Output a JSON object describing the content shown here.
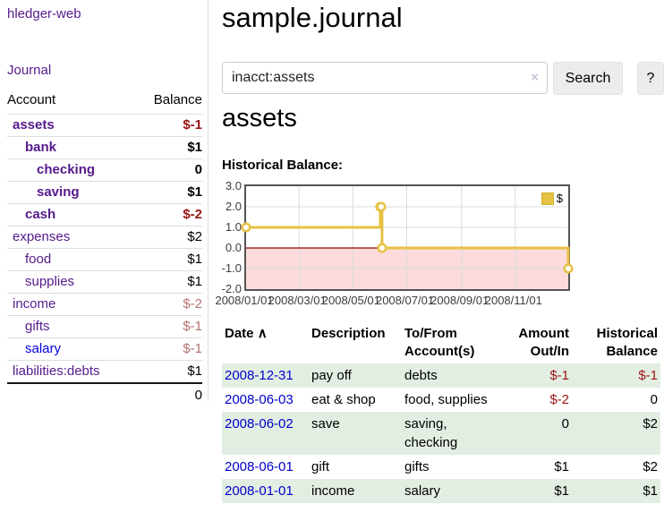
{
  "app": {
    "brand": "hledger-web",
    "nav_journal": "Journal"
  },
  "colors": {
    "accent_purple": "#551a8b",
    "link_blue": "#0000cc",
    "negative_strong": "#9b1414",
    "negative_soft": "#b5736f",
    "row_green": "#e3eee3",
    "chart_line": "#e7c143",
    "chart_negative_region": "#fbdbdb",
    "chart_zero_line": "#8f0000"
  },
  "sidebar": {
    "headers": [
      "Account",
      "Balance"
    ],
    "accounts": [
      {
        "name": "assets",
        "balance": "$-1",
        "indent": 1,
        "emphasis": true
      },
      {
        "name": "bank",
        "balance": "$1",
        "indent": 2,
        "emphasis": true
      },
      {
        "name": "checking",
        "balance": "0",
        "indent": 3,
        "emphasis": true
      },
      {
        "name": "saving",
        "balance": "$1",
        "indent": 3,
        "emphasis": true
      },
      {
        "name": "cash",
        "balance": "$-2",
        "indent": 2,
        "emphasis": true
      },
      {
        "name": "expenses",
        "balance": "$2",
        "indent": 1
      },
      {
        "name": "food",
        "balance": "$1",
        "indent": 2
      },
      {
        "name": "supplies",
        "balance": "$1",
        "indent": 2
      },
      {
        "name": "income",
        "balance": "$-2",
        "indent": 1
      },
      {
        "name": "gifts",
        "balance": "$-1",
        "indent": 2
      },
      {
        "name": "salary",
        "balance": "$-1",
        "indent": 2,
        "unvisited": true
      },
      {
        "name": "liabilities:debts",
        "balance": "$1",
        "indent": 1
      }
    ],
    "total": "0"
  },
  "header": {
    "title": "sample.journal"
  },
  "search": {
    "value": "inacct:assets",
    "clear_icon": "×",
    "button": "Search",
    "help_button": "?"
  },
  "account_page": {
    "heading": "assets",
    "chart_label": "Historical Balance:"
  },
  "chart_data": {
    "type": "line",
    "step": true,
    "title": "Historical Balance:",
    "series": [
      {
        "name": "$",
        "color": "#e7c143",
        "points": [
          {
            "date": "2008-01-01",
            "day": 0,
            "value": 1.0
          },
          {
            "date": "2008-06-01",
            "day": 152,
            "value": 2.0
          },
          {
            "date": "2008-06-02",
            "day": 153,
            "value": 2.0
          },
          {
            "date": "2008-06-03",
            "day": 154,
            "value": 0.0
          },
          {
            "date": "2008-12-31",
            "day": 365,
            "value": -1.0
          }
        ]
      }
    ],
    "x_ticks": [
      {
        "day": 0,
        "label": "2008/01/01"
      },
      {
        "day": 60,
        "label": "2008/03/01"
      },
      {
        "day": 121,
        "label": "2008/05/01"
      },
      {
        "day": 182,
        "label": "2008/07/01"
      },
      {
        "day": 244,
        "label": "2008/09/01"
      },
      {
        "day": 305,
        "label": "2008/11/01"
      }
    ],
    "y_ticks": [
      {
        "value": 3.0,
        "label": "3.0"
      },
      {
        "value": 2.0,
        "label": "2.0"
      },
      {
        "value": 1.0,
        "label": "1.0"
      },
      {
        "value": 0.0,
        "label": "0.0"
      },
      {
        "value": -1.0,
        "label": "-1.0"
      },
      {
        "value": -2.0,
        "label": "-2.0"
      }
    ],
    "x_range_days": [
      0,
      365
    ],
    "y_range": [
      -2,
      3
    ],
    "grid": true,
    "legend": {
      "position": "top-right",
      "label": "$",
      "swatch_color": "#e7c143"
    }
  },
  "register": {
    "sort_icon": "∧",
    "columns": [
      {
        "line1": "Date",
        "line2": ""
      },
      {
        "line1": "Description",
        "line2": ""
      },
      {
        "line1": "To/From",
        "line2": "Account(s)"
      },
      {
        "line1": "Amount",
        "line2": "Out/In"
      },
      {
        "line1": "Historical",
        "line2": "Balance"
      }
    ],
    "rows": [
      {
        "date": "2008-12-31",
        "description": "pay off",
        "accounts": "debts",
        "amount": "$-1",
        "balance": "$-1"
      },
      {
        "date": "2008-06-03",
        "description": "eat & shop",
        "accounts": "food, supplies",
        "amount": "$-2",
        "balance": "0"
      },
      {
        "date": "2008-06-02",
        "description": "save",
        "accounts": "saving, checking",
        "amount": "0",
        "balance": "$2"
      },
      {
        "date": "2008-06-01",
        "description": "gift",
        "accounts": "gifts",
        "amount": "$1",
        "balance": "$2"
      },
      {
        "date": "2008-01-01",
        "description": "income",
        "accounts": "salary",
        "amount": "$1",
        "balance": "$1"
      }
    ]
  }
}
